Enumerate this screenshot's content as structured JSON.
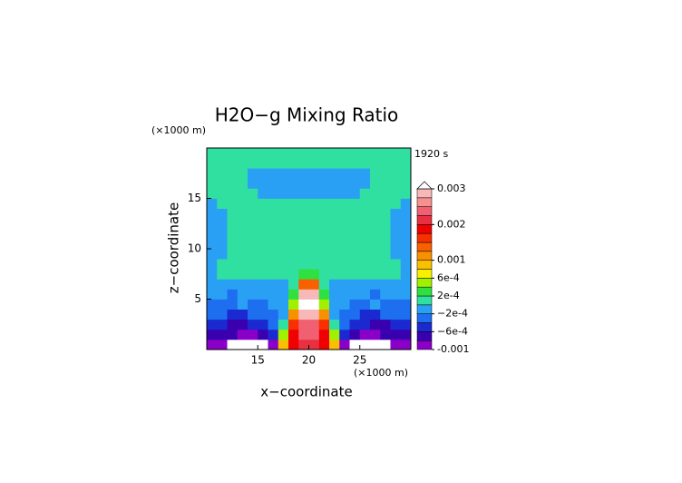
{
  "chart_data": {
    "type": "contour",
    "title": "H2O−g Mixing Ratio",
    "time_label": "1920 s",
    "x_label": "x−coordinate",
    "y_label": "z−coordinate",
    "x_unit": "(×1000 m)",
    "y_unit": "(×1000 m)",
    "xlim": [
      10,
      30
    ],
    "ylim": [
      0,
      20
    ],
    "xticks": [
      15,
      20,
      25
    ],
    "yticks": [
      5,
      10,
      15
    ],
    "x": [
      10.5,
      11.5,
      12.5,
      13.5,
      14.5,
      15.5,
      16.5,
      17.5,
      18.5,
      19.5,
      20.5,
      21.5,
      22.5,
      23.5,
      24.5,
      25.5,
      26.5,
      27.5,
      28.5,
      29.5
    ],
    "z": [
      0.5,
      1.5,
      2.5,
      3.5,
      4.5,
      5.5,
      6.5,
      7.5,
      8.5,
      9.5,
      10.5,
      11.5,
      12.5,
      13.5,
      14.5,
      15.5,
      16.5,
      17.5,
      18.5,
      19.5
    ],
    "values": [
      [
        -0.0009,
        -0.0009,
        -0.0011,
        -0.0011,
        -0.0011,
        -0.0011,
        -0.0009,
        0.0009,
        0.0019,
        0.0021,
        0.0021,
        0.0019,
        0.0009,
        -0.0009,
        -0.0011,
        -0.0011,
        -0.0011,
        -0.0011,
        -0.0009,
        -0.0009
      ],
      [
        -0.0007,
        -0.0007,
        -0.0007,
        -0.0009,
        -0.0009,
        -0.0007,
        -0.0005,
        0.0005,
        0.0019,
        0.0023,
        0.0023,
        0.0019,
        0.0005,
        -0.0005,
        -0.0007,
        -0.0009,
        -0.0009,
        -0.0007,
        -0.0007,
        -0.0007
      ],
      [
        -0.0005,
        -0.0005,
        -0.0007,
        -0.0007,
        -0.0005,
        -0.0005,
        -0.0003,
        0.0001,
        0.0017,
        0.0025,
        0.0025,
        0.0017,
        0.0001,
        -0.0003,
        -0.0005,
        -0.0005,
        -0.0007,
        -0.0007,
        -0.0005,
        -0.0005
      ],
      [
        -0.0003,
        -0.0003,
        -0.0005,
        -0.0005,
        -0.0003,
        -0.0003,
        -0.0003,
        -0.0001,
        0.0011,
        0.0028,
        0.0028,
        0.0011,
        -0.0001,
        -0.0003,
        -0.0003,
        -0.0005,
        -0.0005,
        -0.0003,
        -0.0003,
        -0.0003
      ],
      [
        -0.0003,
        -0.0003,
        -0.0003,
        -0.0001,
        -0.0003,
        -0.0003,
        -0.0001,
        -0.0001,
        0.0005,
        0.0031,
        0.0031,
        0.0005,
        -0.0001,
        -0.0001,
        -0.0003,
        -0.0003,
        -0.0001,
        -0.0003,
        -0.0003,
        -0.0003
      ],
      [
        -0.0001,
        -0.0001,
        -0.0003,
        -0.0001,
        -0.0001,
        -0.0001,
        -0.0001,
        -0.0001,
        0.0003,
        0.0029,
        0.0029,
        0.0003,
        -0.0001,
        -0.0001,
        -0.0001,
        -0.0001,
        -0.0003,
        -0.0001,
        -0.0001,
        -0.0001
      ],
      [
        -0.0001,
        -0.0001,
        -0.0001,
        -0.0001,
        -0.0001,
        -0.0001,
        -0.0001,
        -0.0001,
        0.0001,
        0.0015,
        0.0015,
        0.0001,
        -0.0001,
        -0.0001,
        -0.0001,
        -0.0001,
        -0.0001,
        -0.0001,
        -0.0001,
        -0.0001
      ],
      [
        -0.0001,
        0.0001,
        0.0001,
        0.0001,
        0.0001,
        0.0001,
        0.0001,
        0.0001,
        0.0001,
        0.0003,
        0.0003,
        0.0001,
        0.0001,
        0.0001,
        0.0001,
        0.0001,
        0.0001,
        0.0001,
        0.0001,
        -0.0001
      ],
      [
        -0.0001,
        0.0001,
        0.0001,
        0.0001,
        0.0001,
        0.0001,
        0.0001,
        0.0001,
        0.0001,
        0.0001,
        0.0001,
        0.0001,
        0.0001,
        0.0001,
        0.0001,
        0.0001,
        0.0001,
        0.0001,
        0.0001,
        -0.0001
      ],
      [
        -0.0001,
        -0.0001,
        0.0001,
        0.0001,
        0.0001,
        0.0001,
        0.0001,
        0.0001,
        0.0001,
        0.0001,
        0.0001,
        0.0001,
        0.0001,
        0.0001,
        0.0001,
        0.0001,
        0.0001,
        0.0001,
        -0.0001,
        -0.0001
      ],
      [
        -0.0001,
        -0.0001,
        0.0001,
        0.0001,
        0.0001,
        0.0001,
        0.0001,
        0.0001,
        0.0001,
        0.0001,
        0.0001,
        0.0001,
        0.0001,
        0.0001,
        0.0001,
        0.0001,
        0.0001,
        0.0001,
        -0.0001,
        -0.0001
      ],
      [
        -0.0001,
        -0.0001,
        0.0001,
        0.0001,
        0.0001,
        0.0001,
        0.0001,
        0.0001,
        0.0001,
        0.0001,
        0.0001,
        0.0001,
        0.0001,
        0.0001,
        0.0001,
        0.0001,
        0.0001,
        0.0001,
        -0.0001,
        -0.0001
      ],
      [
        -0.0001,
        -0.0001,
        0.0001,
        0.0001,
        0.0001,
        0.0001,
        0.0001,
        0.0001,
        0.0001,
        0.0001,
        0.0001,
        0.0001,
        0.0001,
        0.0001,
        0.0001,
        0.0001,
        0.0001,
        0.0001,
        -0.0001,
        -0.0001
      ],
      [
        -0.0001,
        -0.0001,
        0.0001,
        0.0001,
        0.0001,
        0.0001,
        0.0001,
        0.0001,
        0.0001,
        0.0001,
        0.0001,
        0.0001,
        0.0001,
        0.0001,
        0.0001,
        0.0001,
        0.0001,
        0.0001,
        -0.0001,
        -0.0001
      ],
      [
        -0.0001,
        0.0001,
        0.0001,
        0.0001,
        0.0001,
        0.0001,
        0.0001,
        0.0001,
        0.0001,
        0.0001,
        0.0001,
        0.0001,
        0.0001,
        0.0001,
        0.0001,
        0.0001,
        0.0001,
        0.0001,
        0.0001,
        -0.0001
      ],
      [
        0.0001,
        0.0001,
        0.0001,
        0.0001,
        0.0001,
        -0.0001,
        -0.0001,
        -0.0001,
        -0.0001,
        -0.0001,
        -0.0001,
        -0.0001,
        -0.0001,
        -0.0001,
        -0.0001,
        0.0001,
        0.0001,
        0.0001,
        0.0001,
        0.0001
      ],
      [
        0.0001,
        0.0001,
        0.0001,
        0.0001,
        -0.0001,
        -0.0001,
        -0.0001,
        -0.0001,
        -0.0001,
        -0.0001,
        -0.0001,
        -0.0001,
        -0.0001,
        -0.0001,
        -0.0001,
        -0.0001,
        0.0001,
        0.0001,
        0.0001,
        0.0001
      ],
      [
        0.0001,
        0.0001,
        0.0001,
        0.0001,
        -0.0001,
        -0.0001,
        -0.0001,
        -0.0001,
        -0.0001,
        -0.0001,
        -0.0001,
        -0.0001,
        -0.0001,
        -0.0001,
        -0.0001,
        -0.0001,
        0.0001,
        0.0001,
        0.0001,
        0.0001
      ],
      [
        0.0001,
        0.0001,
        0.0001,
        0.0001,
        0.0001,
        0.0001,
        0.0001,
        0.0001,
        0.0001,
        0.0001,
        0.0001,
        0.0001,
        0.0001,
        0.0001,
        0.0001,
        0.0001,
        0.0001,
        0.0001,
        0.0001,
        0.0001
      ],
      [
        0.0001,
        0.0001,
        0.0001,
        0.0001,
        0.0001,
        0.0001,
        0.0001,
        0.0001,
        0.0001,
        0.0001,
        0.0001,
        0.0001,
        0.0001,
        0.0001,
        0.0001,
        0.0001,
        0.0001,
        0.0001,
        0.0001,
        0.0001
      ]
    ],
    "levels": [
      -0.001,
      -0.0008,
      -0.0006,
      -0.0004,
      -0.0002,
      0,
      0.0002,
      0.0004,
      0.0006,
      0.0008,
      0.001,
      0.00125,
      0.0015,
      0.00175,
      0.002,
      0.00225,
      0.0025,
      0.00275,
      0.003
    ],
    "colors": [
      "#8a00c8",
      "#3a00b0",
      "#1a2ad0",
      "#1e6ef0",
      "#2aa0f5",
      "#30e0a0",
      "#30e040",
      "#a0f000",
      "#f8f000",
      "#f8c000",
      "#f89000",
      "#f86000",
      "#f83000",
      "#f00000",
      "#e83040",
      "#f06070",
      "#f89090",
      "#f8b8b8"
    ],
    "over_color": "#ffffff",
    "under_color": "#ffffff",
    "colorbar_ticks": [
      -0.001,
      {
        "value": -0.0006,
        "label": "−6e-4"
      },
      {
        "value": -0.0002,
        "label": "−2e-4"
      },
      {
        "value": 0.0002,
        "label": "2e-4"
      },
      {
        "value": 0.0006,
        "label": "6e-4"
      },
      0.001,
      0.002,
      0.003
    ]
  }
}
